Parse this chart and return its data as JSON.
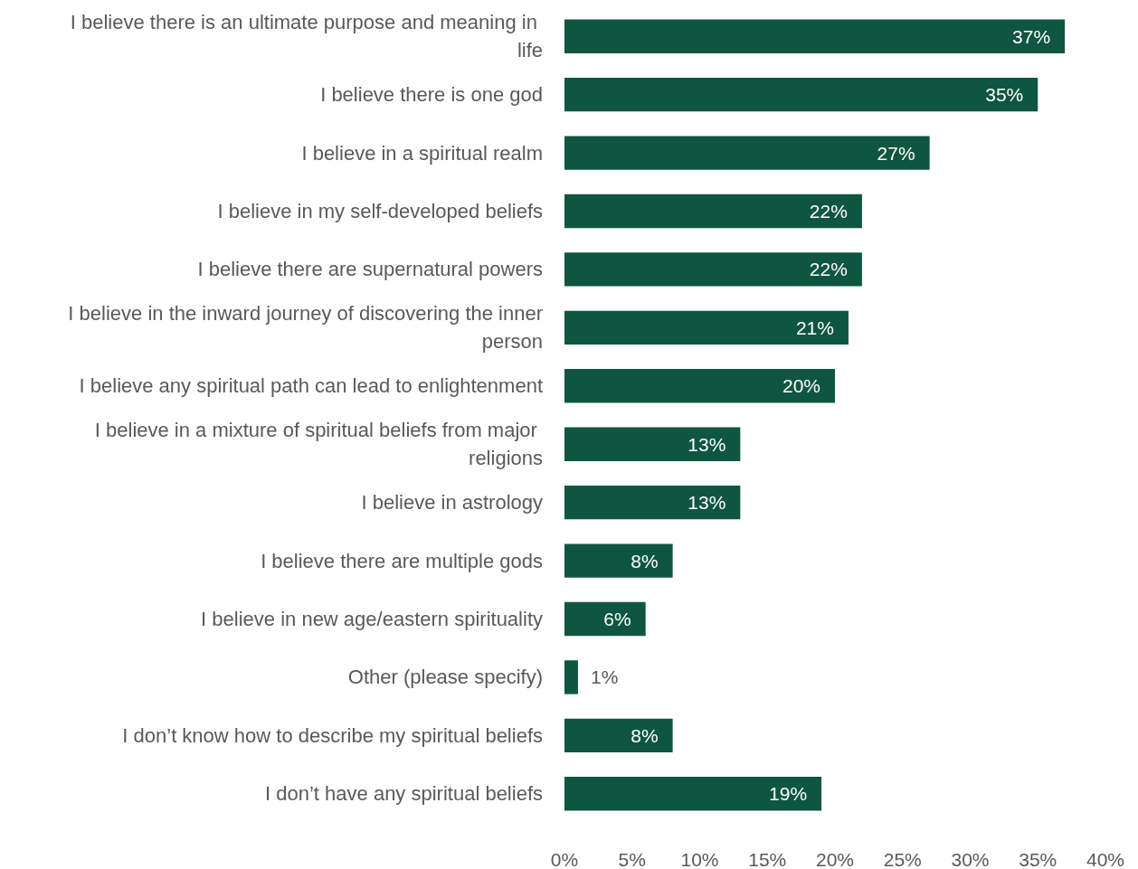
{
  "chart_data": {
    "type": "bar",
    "orientation": "horizontal",
    "categories": [
      "I believe there is an ultimate purpose and meaning in life",
      "I believe there is one god",
      "I believe in a spiritual realm",
      "I believe in my self-developed beliefs",
      "I believe there are supernatural powers",
      "I believe in the inward journey of discovering the inner person",
      "I believe any spiritual path can lead to enlightenment",
      "I believe in a mixture of spiritual beliefs from major religions",
      "I believe in astrology",
      "I believe there are multiple gods",
      "I believe in new age/eastern spirituality",
      "Other (please specify)",
      "I don’t know how to describe my spiritual beliefs",
      "I don’t have any spiritual beliefs"
    ],
    "values": [
      37,
      35,
      27,
      22,
      22,
      21,
      20,
      13,
      13,
      8,
      6,
      1,
      8,
      19
    ],
    "value_labels": [
      "37%",
      "35%",
      "27%",
      "22%",
      "22%",
      "21%",
      "20%",
      "13%",
      "13%",
      "8%",
      "6%",
      "1%",
      "8%",
      "19%"
    ],
    "color": "#0f5640",
    "xlim": [
      0,
      40
    ],
    "xticks": [
      {
        "value": 0,
        "label": "0%"
      },
      {
        "value": 5,
        "label": "5%"
      },
      {
        "value": 10,
        "label": "10%"
      },
      {
        "value": 15,
        "label": "15%"
      },
      {
        "value": 20,
        "label": "20%"
      },
      {
        "value": 25,
        "label": "25%"
      },
      {
        "value": 30,
        "label": "30%"
      },
      {
        "value": 35,
        "label": "35%"
      },
      {
        "value": 40,
        "label": "40%"
      }
    ],
    "grid": false
  }
}
